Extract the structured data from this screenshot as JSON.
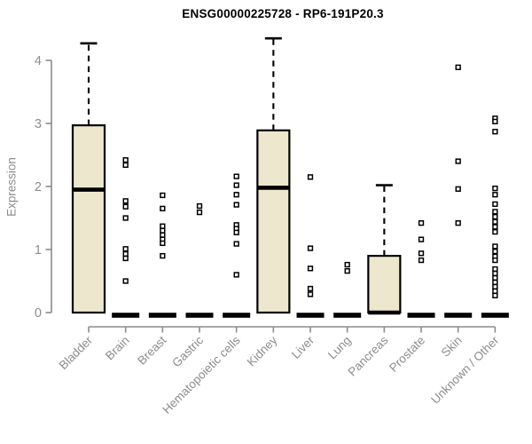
{
  "colors": {
    "background": "#ffffff",
    "box_fill": "#EDE8CD",
    "box_stroke": "#000000",
    "median": "#000000",
    "whisker": "#000000",
    "point_stroke": "#000000",
    "point_fill": "#ffffff",
    "zero_bar": "#000000",
    "axis": "#8c8c8c",
    "tick_label": "#8c8c8c",
    "title": "#000000"
  },
  "chart_data": {
    "type": "boxplot",
    "title": "ENSG00000225728 - RP6-191P20.3",
    "ylabel": "Expression",
    "xlabel": "",
    "ylim": [
      0,
      4.4
    ],
    "y_ticks": [
      0,
      1,
      2,
      3,
      4
    ],
    "grid": false,
    "legend": "none",
    "categories": [
      "Bladder",
      "Brain",
      "Breast",
      "Gastric",
      "Hematopoietic cells",
      "Kidney",
      "Liver",
      "Lung",
      "Pancreas",
      "Prostate",
      "Skin",
      "Unknown / Other"
    ],
    "boxes": [
      {
        "category": "Bladder",
        "q1": 0,
        "median": 1.95,
        "q3": 2.97,
        "whisker_low": 0,
        "whisker_high": 4.27,
        "collapsed": false,
        "points": []
      },
      {
        "category": "Brain",
        "q1": 0,
        "median": 0,
        "q3": 0,
        "whisker_low": 0,
        "whisker_high": 0,
        "collapsed": true,
        "points": [
          2.42,
          2.34,
          1.77,
          1.68,
          1.5,
          1.01,
          0.93,
          0.86,
          0.5
        ]
      },
      {
        "category": "Breast",
        "q1": 0,
        "median": 0,
        "q3": 0,
        "whisker_low": 0,
        "whisker_high": 0,
        "collapsed": true,
        "points": [
          1.86,
          1.65,
          1.37,
          1.3,
          1.23,
          1.16,
          1.1,
          0.9
        ]
      },
      {
        "category": "Gastric",
        "q1": 0,
        "median": 0,
        "q3": 0,
        "whisker_low": 0,
        "whisker_high": 0,
        "collapsed": true,
        "points": [
          1.69,
          1.59
        ]
      },
      {
        "category": "Hematopoietic cells",
        "q1": 0,
        "median": 0,
        "q3": 0,
        "whisker_low": 0,
        "whisker_high": 0,
        "collapsed": true,
        "points": [
          2.16,
          2.02,
          1.87,
          1.71,
          1.39,
          1.33,
          1.27,
          1.09,
          0.6
        ]
      },
      {
        "category": "Kidney",
        "q1": 0,
        "median": 1.98,
        "q3": 2.89,
        "whisker_low": 0,
        "whisker_high": 4.35,
        "collapsed": false,
        "points": []
      },
      {
        "category": "Liver",
        "q1": 0,
        "median": 0,
        "q3": 0,
        "whisker_low": 0,
        "whisker_high": 0,
        "collapsed": true,
        "points": [
          2.15,
          1.02,
          0.7,
          0.38,
          0.29
        ]
      },
      {
        "category": "Lung",
        "q1": 0,
        "median": 0,
        "q3": 0,
        "whisker_low": 0,
        "whisker_high": 0,
        "collapsed": true,
        "points": [
          0.76,
          0.66
        ]
      },
      {
        "category": "Pancreas",
        "q1": 0,
        "median": 0,
        "q3": 0.9,
        "whisker_low": 0,
        "whisker_high": 2.02,
        "collapsed": false,
        "points": []
      },
      {
        "category": "Prostate",
        "q1": 0,
        "median": 0,
        "q3": 0,
        "whisker_low": 0,
        "whisker_high": 0,
        "collapsed": true,
        "points": [
          1.42,
          1.16,
          0.94,
          0.83
        ]
      },
      {
        "category": "Skin",
        "q1": 0,
        "median": 0,
        "q3": 0,
        "whisker_low": 0,
        "whisker_high": 0,
        "collapsed": true,
        "points": [
          3.89,
          2.4,
          1.96,
          1.42
        ]
      },
      {
        "category": "Unknown / Other",
        "q1": 0,
        "median": 0,
        "q3": 0,
        "whisker_low": 0,
        "whisker_high": 0,
        "collapsed": true,
        "points": [
          3.08,
          3.03,
          2.87,
          1.97,
          1.87,
          1.72,
          1.6,
          1.52,
          1.44,
          1.36,
          1.28,
          1.05,
          0.97,
          0.89,
          0.83,
          0.69,
          0.62,
          0.55,
          0.48,
          0.41,
          0.34,
          0.27
        ]
      }
    ]
  }
}
